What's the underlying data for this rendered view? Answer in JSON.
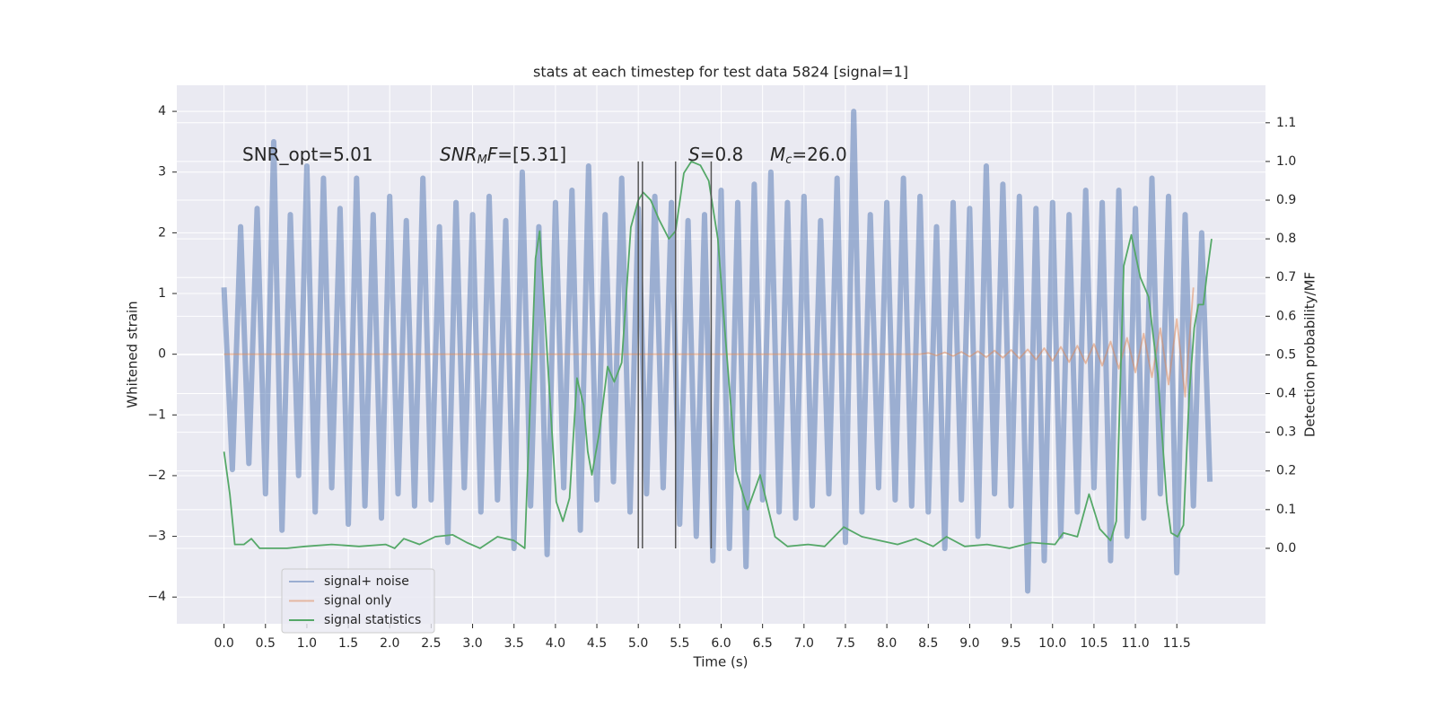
{
  "chart_data": {
    "type": "line",
    "title": "stats at each timestep for test data 5824 [signal=1]",
    "xlabel": "Time (s)",
    "ylabel": "Whitened strain",
    "y2label": "Detection probability/MF",
    "x": [
      0,
      0.1,
      0.2,
      0.3,
      0.4,
      0.5,
      0.6,
      0.7,
      0.8,
      0.9,
      1,
      1.1,
      1.2,
      1.3,
      1.4,
      1.5,
      1.6,
      1.7,
      1.8,
      1.9,
      2,
      2.1,
      2.2,
      2.3,
      2.4,
      2.5,
      2.6,
      2.7,
      2.8,
      2.9,
      3,
      3.1,
      3.2,
      3.3,
      3.4,
      3.5,
      3.6,
      3.7,
      3.8,
      3.9,
      4,
      4.1,
      4.2,
      4.3,
      4.4,
      4.5,
      4.6,
      4.7,
      4.8,
      4.9,
      5,
      5.1,
      5.2,
      5.3,
      5.4,
      5.5,
      5.6,
      5.7,
      5.8,
      5.9,
      6,
      6.1,
      6.2,
      6.3,
      6.4,
      6.5,
      6.6,
      6.7,
      6.8,
      6.9,
      7,
      7.1,
      7.2,
      7.3,
      7.4,
      7.5,
      7.6,
      7.7,
      7.8,
      7.9,
      8,
      8.1,
      8.2,
      8.3,
      8.4,
      8.5,
      8.6,
      8.7,
      8.8,
      8.9,
      9,
      9.1,
      9.2,
      9.3,
      9.4,
      9.5,
      9.6,
      9.7,
      9.8,
      9.9,
      10,
      10.1,
      10.2,
      10.3,
      10.4,
      10.5,
      10.6,
      10.7,
      10.8,
      10.9,
      11,
      11.1,
      11.2,
      11.3,
      11.4,
      11.5,
      11.6,
      11.7,
      11.8,
      11.9
    ],
    "series": [
      {
        "name": "signal+ noise",
        "color": "#4c72b0",
        "opacity": 0.5,
        "fill_style": "dense",
        "values": [
          1.1,
          -1.9,
          2.1,
          -1.8,
          2.4,
          -2.3,
          3.5,
          -2.9,
          2.3,
          -2.0,
          3.1,
          -2.6,
          2.9,
          -2.2,
          2.4,
          -2.8,
          2.9,
          -2.5,
          2.3,
          -2.7,
          2.6,
          -2.3,
          2.2,
          -2.5,
          2.9,
          -2.4,
          2.1,
          -3.1,
          2.5,
          -2.2,
          2.3,
          -2.6,
          2.6,
          -2.4,
          2.2,
          -3.2,
          3.0,
          -2.5,
          2.1,
          -3.3,
          2.5,
          -2.2,
          2.7,
          -2.9,
          3.1,
          -2.4,
          2.3,
          -2.1,
          2.9,
          -2.6,
          2.4,
          -2.3,
          2.6,
          -2.2,
          2.5,
          -2.8,
          2.2,
          -3.0,
          2.3,
          -3.4,
          2.7,
          -3.2,
          2.5,
          -3.5,
          2.8,
          -2.4,
          3.0,
          -2.6,
          2.5,
          -2.7,
          2.6,
          -2.5,
          2.2,
          -2.3,
          2.9,
          -3.1,
          4.0,
          -2.6,
          2.3,
          -2.2,
          2.5,
          -2.4,
          2.9,
          -2.5,
          2.6,
          -2.6,
          2.1,
          -3.2,
          2.5,
          -2.4,
          2.4,
          -3.0,
          3.1,
          -2.3,
          2.8,
          -2.5,
          2.6,
          -3.9,
          2.4,
          -3.4,
          2.5,
          -3.0,
          2.3,
          -2.6,
          2.7,
          -2.2,
          2.5,
          -3.4,
          2.7,
          -3.0,
          2.4,
          -2.7,
          2.9,
          -2.3,
          2.6,
          -3.6,
          2.3,
          -2.5,
          2.0,
          -2.1
        ]
      },
      {
        "name": "signal only",
        "color": "#dd8452",
        "opacity": 0.5,
        "values": [
          0,
          0,
          0,
          0,
          0,
          0,
          0,
          0,
          0,
          0,
          0,
          0,
          0,
          0,
          0,
          0,
          0,
          0,
          0,
          0,
          0,
          0,
          0,
          0,
          0,
          0,
          0,
          0,
          0,
          0,
          0,
          0,
          0,
          0,
          0,
          0,
          0,
          0,
          0,
          0,
          0,
          0,
          0,
          0,
          0,
          0,
          0,
          0,
          0,
          0,
          0,
          0,
          0,
          0,
          0,
          0,
          0,
          0,
          0,
          0,
          0,
          0,
          0,
          0,
          0,
          0,
          0,
          0,
          0,
          0,
          0,
          0,
          0,
          0,
          0,
          0,
          0,
          0,
          0,
          0,
          0,
          0,
          0,
          0,
          0,
          0.02,
          -0.02,
          0.03,
          -0.03,
          0.04,
          -0.04,
          0.05,
          -0.05,
          0.06,
          -0.06,
          0.07,
          -0.07,
          0.08,
          -0.09,
          0.1,
          -0.11,
          0.12,
          -0.13,
          0.14,
          -0.15,
          0.17,
          -0.19,
          0.21,
          -0.24,
          0.27,
          -0.3,
          0.34,
          -0.38,
          0.43,
          -0.5,
          0.58,
          -0.7,
          1.1,
          null,
          null
        ]
      },
      {
        "name": "signal statistics",
        "color": "#55a868",
        "opacity": 1,
        "axis": "y2",
        "x": [
          0,
          0.07,
          0.13,
          0.24,
          0.33,
          0.43,
          0.76,
          0.98,
          1.3,
          1.63,
          1.95,
          2.06,
          2.17,
          2.36,
          2.55,
          2.76,
          2.93,
          3.09,
          3.3,
          3.5,
          3.63,
          3.76,
          3.81,
          3.93,
          4.01,
          4.09,
          4.17,
          4.26,
          4.34,
          4.39,
          4.44,
          4.53,
          4.63,
          4.71,
          4.8,
          4.91,
          5.0,
          5.06,
          5.15,
          5.25,
          5.37,
          5.45,
          5.55,
          5.64,
          5.75,
          5.85,
          5.96,
          6.05,
          6.18,
          6.32,
          6.47,
          6.65,
          6.8,
          7.05,
          7.25,
          7.48,
          7.7,
          8.13,
          8.35,
          8.56,
          8.72,
          8.94,
          9.21,
          9.48,
          9.75,
          10.03,
          10.13,
          10.3,
          10.44,
          10.57,
          10.7,
          10.77,
          10.86,
          10.95,
          11.06,
          11.16,
          11.27,
          11.38,
          11.43,
          11.51,
          11.58,
          11.65,
          11.71,
          11.76,
          11.82,
          11.87,
          11.92
        ],
        "values": [
          0.25,
          0.14,
          0.01,
          0.01,
          0.025,
          0.0,
          0.0,
          0.005,
          0.01,
          0.005,
          0.01,
          0.0,
          0.025,
          0.01,
          0.03,
          0.035,
          0.015,
          0.0,
          0.03,
          0.02,
          0.0,
          0.75,
          0.82,
          0.4,
          0.12,
          0.07,
          0.13,
          0.44,
          0.37,
          0.25,
          0.19,
          0.3,
          0.47,
          0.43,
          0.48,
          0.83,
          0.9,
          0.92,
          0.9,
          0.85,
          0.8,
          0.82,
          0.97,
          1.0,
          0.99,
          0.95,
          0.8,
          0.55,
          0.2,
          0.1,
          0.19,
          0.03,
          0.005,
          0.01,
          0.005,
          0.055,
          0.03,
          0.01,
          0.025,
          0.005,
          0.03,
          0.005,
          0.01,
          0.0,
          0.015,
          0.01,
          0.04,
          0.03,
          0.14,
          0.05,
          0.02,
          0.07,
          0.73,
          0.81,
          0.7,
          0.65,
          0.45,
          0.12,
          0.04,
          0.03,
          0.06,
          0.4,
          0.57,
          0.63,
          0.63,
          0.72,
          0.8
        ]
      }
    ],
    "vlines": [
      5.0,
      5.05,
      5.45,
      5.88
    ],
    "vline_span": [
      0,
      1
    ],
    "vline_color": "#555555",
    "annotations": [
      [
        {
          "text": "SNR_opt=5.01"
        }
      ],
      [
        {
          "text": "SNR",
          "style": "italic"
        },
        {
          "text": "M",
          "style": "sub"
        },
        {
          "text": "F",
          "style": "italic"
        },
        {
          "text": "=[5.31]"
        }
      ],
      [
        {
          "text": "S",
          "style": "italic"
        },
        {
          "text": "=0.8"
        }
      ],
      [
        {
          "text": "M",
          "style": "italic"
        },
        {
          "text": "c",
          "style": "sub"
        },
        {
          "text": "=26.0"
        }
      ]
    ],
    "xlim": [
      -0.57,
      12.57
    ],
    "ylim": [
      -4.44,
      4.43
    ],
    "y2lim": [
      -0.195,
      1.197
    ],
    "xticks": [
      {
        "value": 0,
        "label": "0.0"
      },
      0.5,
      {
        "value": 1,
        "label": "1.0"
      },
      1.5,
      {
        "value": 2,
        "label": "2.0"
      },
      2.5,
      {
        "value": 3,
        "label": "3.0"
      },
      3.5,
      {
        "value": 4,
        "label": "4.0"
      },
      4.5,
      {
        "value": 5,
        "label": "5.0"
      },
      5.5,
      {
        "value": 6,
        "label": "6.0"
      },
      6.5,
      {
        "value": 7,
        "label": "7.0"
      },
      7.5,
      {
        "value": 8,
        "label": "8.0"
      },
      8.5,
      {
        "value": 9,
        "label": "9.0"
      },
      9.5,
      {
        "value": 10,
        "label": "10.0"
      },
      10.5,
      {
        "value": 11,
        "label": "11.0"
      },
      11.5
    ],
    "yticks": [
      {
        "value": -4,
        "label": "−4"
      },
      {
        "value": -3,
        "label": "−3"
      },
      {
        "value": -2,
        "label": "−2"
      },
      {
        "value": -1,
        "label": "−1"
      },
      0,
      1,
      2,
      3,
      4
    ],
    "y2ticks": [
      {
        "value": 0,
        "label": "0.0"
      },
      0.1,
      0.2,
      0.3,
      0.4,
      0.5,
      0.6,
      0.7,
      0.8,
      0.9,
      {
        "value": 1,
        "label": "1.0"
      },
      1.1
    ],
    "grid": true,
    "legend": "lower left"
  }
}
